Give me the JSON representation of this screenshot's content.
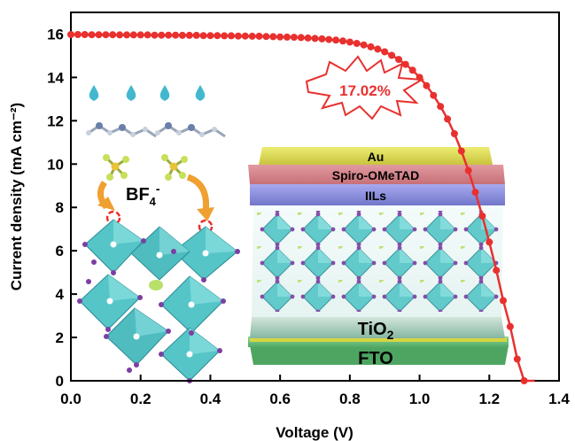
{
  "chart_data": {
    "type": "line",
    "xlabel": "Voltage (V)",
    "ylabel": "Current density (mA cm⁻²)",
    "xlim": [
      0.0,
      1.4
    ],
    "ylim": [
      0,
      17
    ],
    "x_ticks": [
      "0.0",
      "0.2",
      "0.4",
      "0.6",
      "0.8",
      "1.0",
      "1.2",
      "1.4"
    ],
    "y_ticks": [
      "0",
      "2",
      "4",
      "6",
      "8",
      "10",
      "12",
      "14",
      "16"
    ],
    "series": [
      {
        "color": "#e8312f",
        "x": [
          0.0,
          0.02,
          0.04,
          0.06,
          0.08,
          0.1,
          0.12,
          0.14,
          0.16,
          0.18,
          0.2,
          0.22,
          0.24,
          0.26,
          0.28,
          0.3,
          0.32,
          0.34,
          0.36,
          0.38,
          0.4,
          0.42,
          0.44,
          0.46,
          0.48,
          0.5,
          0.52,
          0.54,
          0.56,
          0.58,
          0.6,
          0.62,
          0.64,
          0.66,
          0.68,
          0.7,
          0.72,
          0.74,
          0.76,
          0.78,
          0.8,
          0.82,
          0.84,
          0.86,
          0.88,
          0.9,
          0.92,
          0.94,
          0.96,
          0.98,
          1.0,
          1.02,
          1.04,
          1.06,
          1.08,
          1.1,
          1.12,
          1.14,
          1.16,
          1.18,
          1.2,
          1.22,
          1.24,
          1.26,
          1.28,
          1.3,
          1.32,
          1.33
        ],
        "y": [
          15.98,
          15.98,
          15.98,
          15.97,
          15.97,
          15.97,
          15.97,
          15.96,
          15.96,
          15.96,
          15.96,
          15.96,
          15.95,
          15.95,
          15.95,
          15.95,
          15.94,
          15.94,
          15.94,
          15.93,
          15.93,
          15.93,
          15.92,
          15.92,
          15.91,
          15.91,
          15.9,
          15.9,
          15.89,
          15.88,
          15.87,
          15.86,
          15.85,
          15.84,
          15.82,
          15.8,
          15.78,
          15.75,
          15.72,
          15.68,
          15.63,
          15.57,
          15.5,
          15.41,
          15.31,
          15.18,
          15.02,
          14.83,
          14.6,
          14.33,
          14.0,
          13.62,
          13.17,
          12.66,
          12.08,
          11.4,
          10.6,
          9.7,
          8.7,
          7.6,
          6.4,
          5.1,
          3.7,
          2.5,
          1.0,
          0.0,
          -1.0,
          -1.6
        ]
      }
    ],
    "annotations": {
      "efficiency": "17.02%",
      "anion_label": "BF",
      "anion_subscript": "4",
      "anion_superscript": "-",
      "layers": {
        "au": "Au",
        "spiro": "Spiro-OMeTAD",
        "iils": "IILs",
        "tio2": "TiO",
        "tio2_subscript": "2",
        "fto": "FTO"
      }
    },
    "colors": {
      "curve": "#e8312f",
      "au": "#e0dc5a",
      "spiro": "#d4808a",
      "iils": "#8b8fd8",
      "tio2": "#9ec9b8",
      "fto": "#72c283",
      "electrode": "#d6d640",
      "crystal": "#52c7c7",
      "drop": "#42b8cf",
      "arrow": "#f0a030"
    }
  }
}
